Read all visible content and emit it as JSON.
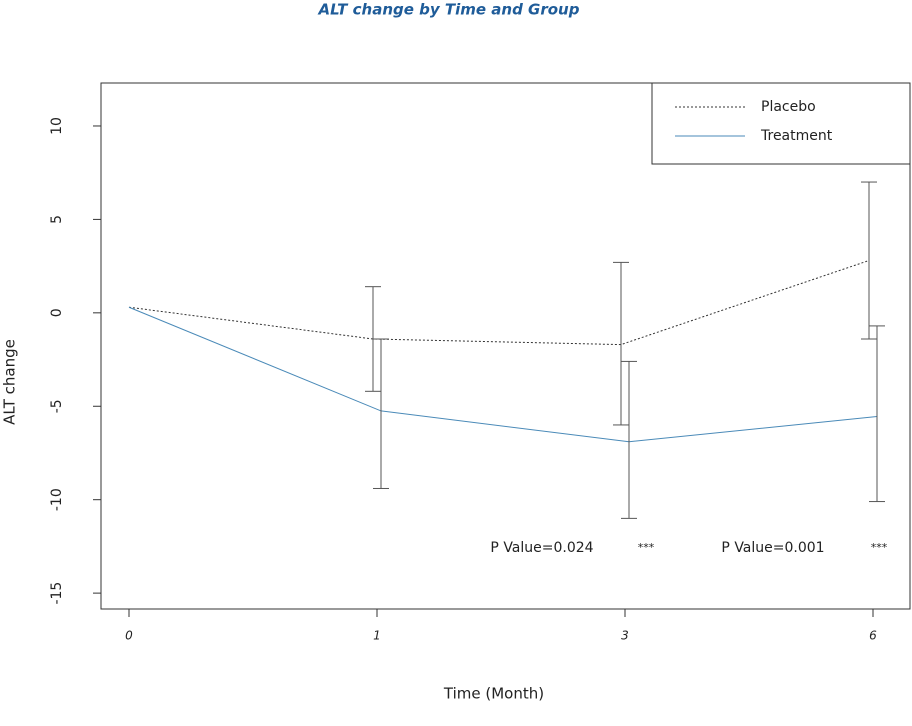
{
  "chart_data": {
    "type": "line",
    "title": "ALT change by Time and Group",
    "xlabel": "Time (Month)",
    "ylabel": "ALT change",
    "categories": [
      "0",
      "1",
      "3",
      "6"
    ],
    "series": [
      {
        "name": "Placebo",
        "color": "#333333",
        "dash": "dotted",
        "values": [
          0.3,
          -1.4,
          -1.7,
          2.8
        ],
        "lower": [
          null,
          -4.2,
          -6.0,
          -1.4
        ],
        "upper": [
          null,
          1.4,
          2.7,
          7.0
        ]
      },
      {
        "name": "Treatment",
        "color": "#4a8ab8",
        "dash": "solid",
        "values": [
          0.3,
          -5.25,
          -6.9,
          -5.55
        ],
        "lower": [
          null,
          -9.4,
          -11.0,
          -10.1
        ],
        "upper": [
          null,
          -1.4,
          -2.6,
          -0.7
        ]
      }
    ],
    "annotations": [
      "P Value=0.024",
      "***",
      "P Value=0.001",
      "***"
    ],
    "ylim": [
      -15.85,
      12.3
    ],
    "yticks": [
      -15,
      -10,
      -5,
      0,
      5,
      10
    ],
    "legend": "topright"
  }
}
